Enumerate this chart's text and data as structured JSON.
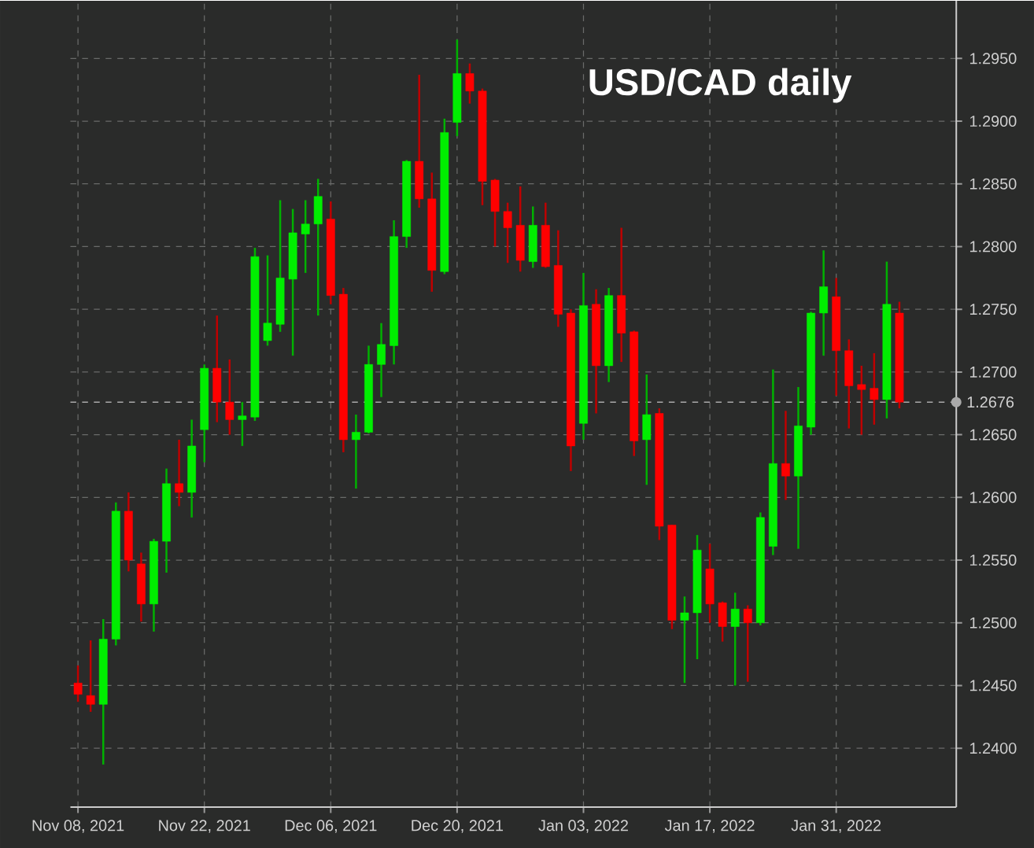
{
  "chart_data": {
    "type": "candlestick",
    "title": "USD/CAD daily",
    "categories": [
      "Nov 08, 2021",
      null,
      null,
      null,
      null,
      null,
      null,
      null,
      null,
      null,
      "Nov 22, 2021",
      null,
      null,
      null,
      null,
      null,
      null,
      null,
      null,
      null,
      "Dec 06, 2021",
      null,
      null,
      null,
      null,
      null,
      null,
      null,
      null,
      null,
      "Dec 20, 2021",
      null,
      null,
      null,
      null,
      null,
      null,
      null,
      null,
      null,
      "Jan 03, 2022",
      null,
      null,
      null,
      null,
      null,
      null,
      null,
      null,
      null,
      "Jan 17, 2022",
      null,
      null,
      null,
      null,
      null,
      null,
      null,
      null,
      null,
      "Jan 31, 2022",
      null,
      null,
      null,
      null,
      null
    ],
    "ohlc": [
      [
        1.2452,
        1.2466,
        1.2437,
        1.2443
      ],
      [
        1.2442,
        1.2486,
        1.2429,
        1.2435
      ],
      [
        1.2435,
        1.2503,
        1.2387,
        1.2487
      ],
      [
        1.2487,
        1.2596,
        1.2482,
        1.2589
      ],
      [
        1.2589,
        1.2604,
        1.2541,
        1.255
      ],
      [
        1.2547,
        1.2556,
        1.2501,
        1.2515
      ],
      [
        1.2515,
        1.2567,
        1.2493,
        1.2565
      ],
      [
        1.2565,
        1.2623,
        1.254,
        1.2611
      ],
      [
        1.2611,
        1.2646,
        1.2593,
        1.2604
      ],
      [
        1.2604,
        1.2662,
        1.2584,
        1.2641
      ],
      [
        1.2654,
        1.2706,
        1.2628,
        1.2703
      ],
      [
        1.2703,
        1.2745,
        1.266,
        1.2676
      ],
      [
        1.2676,
        1.271,
        1.265,
        1.2662
      ],
      [
        1.2662,
        1.2676,
        1.2641,
        1.2665
      ],
      [
        1.2664,
        1.2799,
        1.2661,
        1.2792
      ],
      [
        1.2725,
        1.2793,
        1.2721,
        1.2739
      ],
      [
        1.2738,
        1.2837,
        1.2732,
        1.2775
      ],
      [
        1.2774,
        1.283,
        1.2713,
        1.2811
      ],
      [
        1.281,
        1.2837,
        1.2779,
        1.2818
      ],
      [
        1.2818,
        1.2854,
        1.2745,
        1.284
      ],
      [
        1.2822,
        1.2836,
        1.2754,
        1.2761
      ],
      [
        1.2762,
        1.2767,
        1.2636,
        1.2646
      ],
      [
        1.2646,
        1.2666,
        1.2607,
        1.2652
      ],
      [
        1.2652,
        1.2721,
        1.2651,
        1.2706
      ],
      [
        1.2706,
        1.2739,
        1.268,
        1.2722
      ],
      [
        1.2721,
        1.2821,
        1.2706,
        1.2808
      ],
      [
        1.2808,
        1.2869,
        1.2799,
        1.2868
      ],
      [
        1.2868,
        1.2937,
        1.2831,
        1.2838
      ],
      [
        1.2838,
        1.2859,
        1.2764,
        1.2781
      ],
      [
        1.278,
        1.2902,
        1.2778,
        1.2891
      ],
      [
        1.2899,
        1.2965,
        1.2888,
        1.2938
      ],
      [
        1.2938,
        1.2946,
        1.2914,
        1.2924
      ],
      [
        1.2924,
        1.2926,
        1.2833,
        1.2852
      ],
      [
        1.2853,
        1.2854,
        1.28,
        1.2828
      ],
      [
        1.2828,
        1.2835,
        1.2787,
        1.2815
      ],
      [
        1.2817,
        1.2848,
        1.278,
        1.2789
      ],
      [
        1.2788,
        1.2832,
        1.2783,
        1.2817
      ],
      [
        1.2817,
        1.2835,
        1.2783,
        1.2784
      ],
      [
        1.2785,
        1.2813,
        1.2736,
        1.2746
      ],
      [
        1.2747,
        1.275,
        1.2621,
        1.2641
      ],
      [
        1.2659,
        1.2779,
        1.2646,
        1.2753
      ],
      [
        1.2754,
        1.2766,
        1.2667,
        1.2705
      ],
      [
        1.2705,
        1.2767,
        1.2692,
        1.2761
      ],
      [
        1.2761,
        1.2815,
        1.2708,
        1.2731
      ],
      [
        1.2732,
        1.2733,
        1.2633,
        1.2645
      ],
      [
        1.2646,
        1.2698,
        1.261,
        1.2666
      ],
      [
        1.2667,
        1.2671,
        1.2566,
        1.2577
      ],
      [
        1.2578,
        1.2578,
        1.2495,
        1.2502
      ],
      [
        1.2502,
        1.2521,
        1.2452,
        1.2508
      ],
      [
        1.2508,
        1.257,
        1.2471,
        1.2558
      ],
      [
        1.2543,
        1.2563,
        1.25,
        1.2515
      ],
      [
        1.2516,
        1.2517,
        1.2485,
        1.2497
      ],
      [
        1.2497,
        1.2524,
        1.245,
        1.2511
      ],
      [
        1.2511,
        1.2514,
        1.2453,
        1.25
      ],
      [
        1.25,
        1.2588,
        1.2498,
        1.2584
      ],
      [
        1.2561,
        1.2702,
        1.2554,
        1.2627
      ],
      [
        1.2627,
        1.2669,
        1.2598,
        1.2617
      ],
      [
        1.2617,
        1.2688,
        1.2559,
        1.2657
      ],
      [
        1.2656,
        1.2748,
        1.265,
        1.2747
      ],
      [
        1.2747,
        1.2797,
        1.2713,
        1.2768
      ],
      [
        1.276,
        1.2775,
        1.2681,
        1.2717
      ],
      [
        1.2717,
        1.2726,
        1.2655,
        1.2689
      ],
      [
        1.269,
        1.2705,
        1.265,
        1.2686
      ],
      [
        1.2687,
        1.2715,
        1.2658,
        1.2678
      ],
      [
        1.2678,
        1.2788,
        1.2663,
        1.2754
      ],
      [
        1.2747,
        1.2756,
        1.2671,
        1.2676
      ]
    ],
    "colors": [
      "#ff0000",
      "#ff0000",
      "#00ee00",
      "#00ee00",
      "#ff0000",
      "#ff0000",
      "#00ee00",
      "#00ee00",
      "#ff0000",
      "#00ee00",
      "#00ee00",
      "#ff0000",
      "#ff0000",
      "#00ee00",
      "#00ee00",
      "#00ee00",
      "#00ee00",
      "#00ee00",
      "#00ee00",
      "#00ee00",
      "#ff0000",
      "#ff0000",
      "#00ee00",
      "#00ee00",
      "#00ee00",
      "#00ee00",
      "#00ee00",
      "#ff0000",
      "#ff0000",
      "#00ee00",
      "#00ee00",
      "#ff0000",
      "#ff0000",
      "#ff0000",
      "#ff0000",
      "#ff0000",
      "#00ee00",
      "#ff0000",
      "#ff0000",
      "#ff0000",
      "#00ee00",
      "#ff0000",
      "#00ee00",
      "#ff0000",
      "#ff0000",
      "#00ee00",
      "#ff0000",
      "#ff0000",
      "#00ee00",
      "#00ee00",
      "#ff0000",
      "#ff0000",
      "#00ee00",
      "#ff0000",
      "#00ee00",
      "#00ee00",
      "#ff0000",
      "#00ee00",
      "#00ee00",
      "#00ee00",
      "#ff0000",
      "#ff0000",
      "#ff0000",
      "#ff0000",
      "#00ee00",
      "#ff0000"
    ],
    "ylim": [
      1.2353,
      1.2996
    ],
    "yticks": [
      {
        "value": 1.24,
        "label": "1.2400"
      },
      {
        "value": 1.245,
        "label": "1.2450"
      },
      {
        "value": 1.25,
        "label": "1.2500"
      },
      {
        "value": 1.255,
        "label": "1.2550"
      },
      {
        "value": 1.26,
        "label": "1.2600"
      },
      {
        "value": 1.265,
        "label": "1.2650"
      },
      {
        "value": 1.27,
        "label": "1.2700"
      },
      {
        "value": 1.275,
        "label": "1.2750"
      },
      {
        "value": 1.28,
        "label": "1.2800"
      },
      {
        "value": 1.285,
        "label": "1.2850"
      },
      {
        "value": 1.29,
        "label": "1.2900"
      },
      {
        "value": 1.295,
        "label": "1.2950"
      }
    ],
    "grid": true,
    "ref_lines": [
      {
        "axis": "y",
        "value": 1.2676,
        "label": "1.2676",
        "color": "#aaaaaa",
        "line_style": "dashed"
      }
    ]
  }
}
